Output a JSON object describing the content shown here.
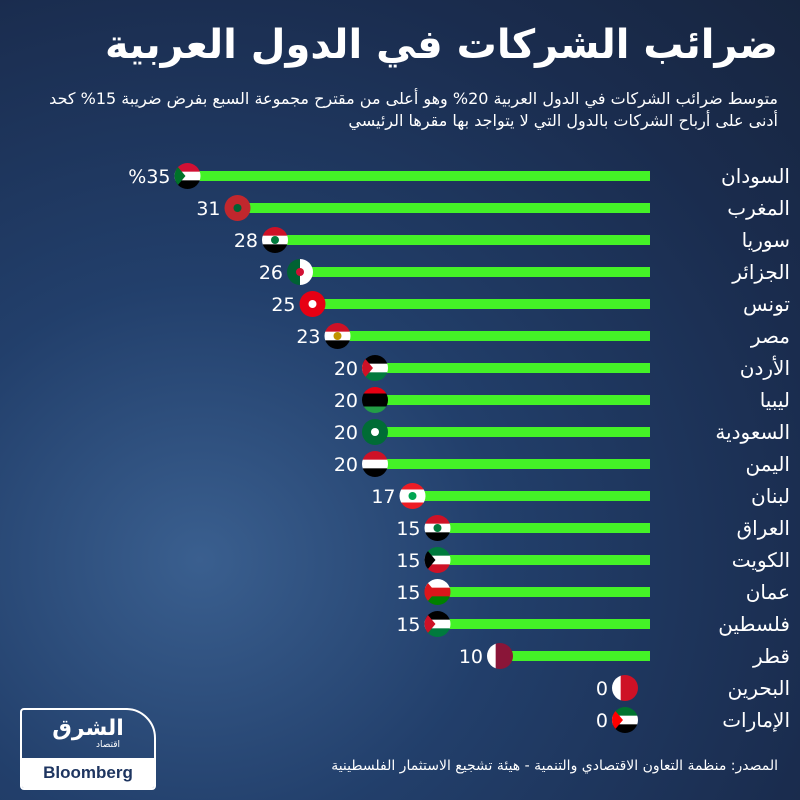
{
  "title": "ضرائب الشركات في الدول العربية",
  "subtitle": "متوسط ضرائب الشركات في الدول العربية 20% وهو أعلى من مقترح مجموعة السبع بفرض ضريبة 15% كحد أدنى على أرباح الشركات بالدول التي لا يتواجد بها مقرها الرئيسي",
  "source": "المصدر: منظمة التعاون الاقتصادي والتنمية - هيئة تشجيع الاستثمار الفلسطينية",
  "logo": {
    "arabic": "الشرق",
    "sub": "اقتصاد",
    "brand": "Bloomberg"
  },
  "colors": {
    "bar": "#44f227",
    "background": "#1e3560"
  },
  "chart_data": {
    "type": "bar",
    "orientation": "horizontal",
    "unit": "%",
    "xlim": [
      0,
      35
    ],
    "categories": [
      "السودان",
      "المغرب",
      "سوريا",
      "الجزائر",
      "تونس",
      "مصر",
      "الأردن",
      "ليبيا",
      "السعودية",
      "اليمن",
      "لبنان",
      "العراق",
      "الكويت",
      "عمان",
      "فلسطين",
      "قطر",
      "البحرين",
      "الإمارات"
    ],
    "values": [
      35,
      31,
      28,
      26,
      25,
      23,
      20,
      20,
      20,
      20,
      17,
      15,
      15,
      15,
      15,
      10,
      0,
      0
    ],
    "value_labels": [
      "%35",
      "31",
      "28",
      "26",
      "25",
      "23",
      "20",
      "20",
      "20",
      "20",
      "17",
      "15",
      "15",
      "15",
      "15",
      "10",
      "0",
      "0"
    ],
    "flag_icons": [
      {
        "dir": "h",
        "stripes": [
          "#d21034",
          "#ffffff",
          "#000000"
        ],
        "hoist": "#007229"
      },
      {
        "dir": "h",
        "stripes": [
          "#c1272d"
        ],
        "emblem": "#006233"
      },
      {
        "dir": "h",
        "stripes": [
          "#ce1126",
          "#ffffff",
          "#000000"
        ],
        "emblem": "#007a3d"
      },
      {
        "dir": "v",
        "stripes": [
          "#006233",
          "#ffffff"
        ],
        "emblem": "#d21034"
      },
      {
        "dir": "h",
        "stripes": [
          "#e70013"
        ],
        "emblem": "#ffffff"
      },
      {
        "dir": "h",
        "stripes": [
          "#ce1126",
          "#ffffff",
          "#000000"
        ],
        "emblem": "#c09300"
      },
      {
        "dir": "h",
        "stripes": [
          "#000000",
          "#ffffff",
          "#007a3d"
        ],
        "hoist": "#ce1126"
      },
      {
        "dir": "h",
        "stripes": [
          "#e70013",
          "#000000",
          "#000000",
          "#239e46"
        ]
      },
      {
        "dir": "h",
        "stripes": [
          "#006c35"
        ],
        "emblem": "#ffffff"
      },
      {
        "dir": "h",
        "stripes": [
          "#ce1126",
          "#ffffff",
          "#000000"
        ]
      },
      {
        "dir": "h",
        "stripes": [
          "#ed1c24",
          "#ffffff",
          "#ffffff",
          "#ed1c24"
        ],
        "emblem": "#00a651"
      },
      {
        "dir": "h",
        "stripes": [
          "#ce1126",
          "#ffffff",
          "#000000"
        ],
        "emblem": "#007a3d"
      },
      {
        "dir": "h",
        "stripes": [
          "#007a3d",
          "#ffffff",
          "#ce1126"
        ],
        "hoist": "#000000"
      },
      {
        "dir": "h",
        "stripes": [
          "#ffffff",
          "#db161b",
          "#008000"
        ],
        "hoist": "#db161b"
      },
      {
        "dir": "h",
        "stripes": [
          "#000000",
          "#ffffff",
          "#007a3d"
        ],
        "hoist": "#ce1126"
      },
      {
        "dir": "v",
        "stripes": [
          "#ffffff",
          "#8a1538",
          "#8a1538"
        ]
      },
      {
        "dir": "v",
        "stripes": [
          "#ffffff",
          "#ce1126",
          "#ce1126"
        ]
      },
      {
        "dir": "h",
        "stripes": [
          "#00732f",
          "#ffffff",
          "#000000"
        ],
        "hoist": "#ff0000"
      }
    ]
  }
}
